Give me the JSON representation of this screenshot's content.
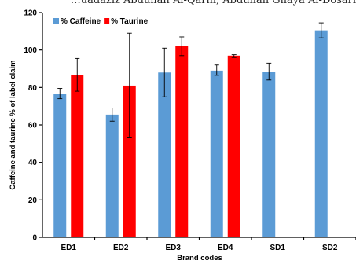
{
  "header_text": "…uadaziz Abdullah Al-Qarni, Abdullah Ghaya Al-Dosari",
  "chart_data": {
    "type": "bar",
    "categories": [
      "ED1",
      "ED2",
      "ED3",
      "ED4",
      "SD1",
      "SD2"
    ],
    "series": [
      {
        "name": "% Caffeine",
        "color": "#5b9bd5",
        "values": [
          76.5,
          65.5,
          88,
          89,
          88.5,
          110.5
        ],
        "err_low": [
          74,
          62,
          75,
          86.5,
          84,
          106.5
        ],
        "err_high": [
          79.5,
          69,
          101,
          92,
          93,
          114.5
        ]
      },
      {
        "name": "% Taurine",
        "color": "#ff0000",
        "values": [
          86.5,
          81,
          102,
          97,
          null,
          null
        ],
        "err_low": [
          78,
          53.5,
          97,
          96,
          null,
          null
        ],
        "err_high": [
          95.5,
          109,
          107,
          97.5,
          null,
          null
        ]
      }
    ],
    "xlabel": "Brand codes",
    "ylabel": "Caffeine and taurine % of label claim",
    "ylim": [
      0,
      120
    ],
    "yticks": [
      0,
      20,
      40,
      60,
      80,
      100,
      120
    ],
    "grid": false,
    "legend_position": "top-left"
  }
}
